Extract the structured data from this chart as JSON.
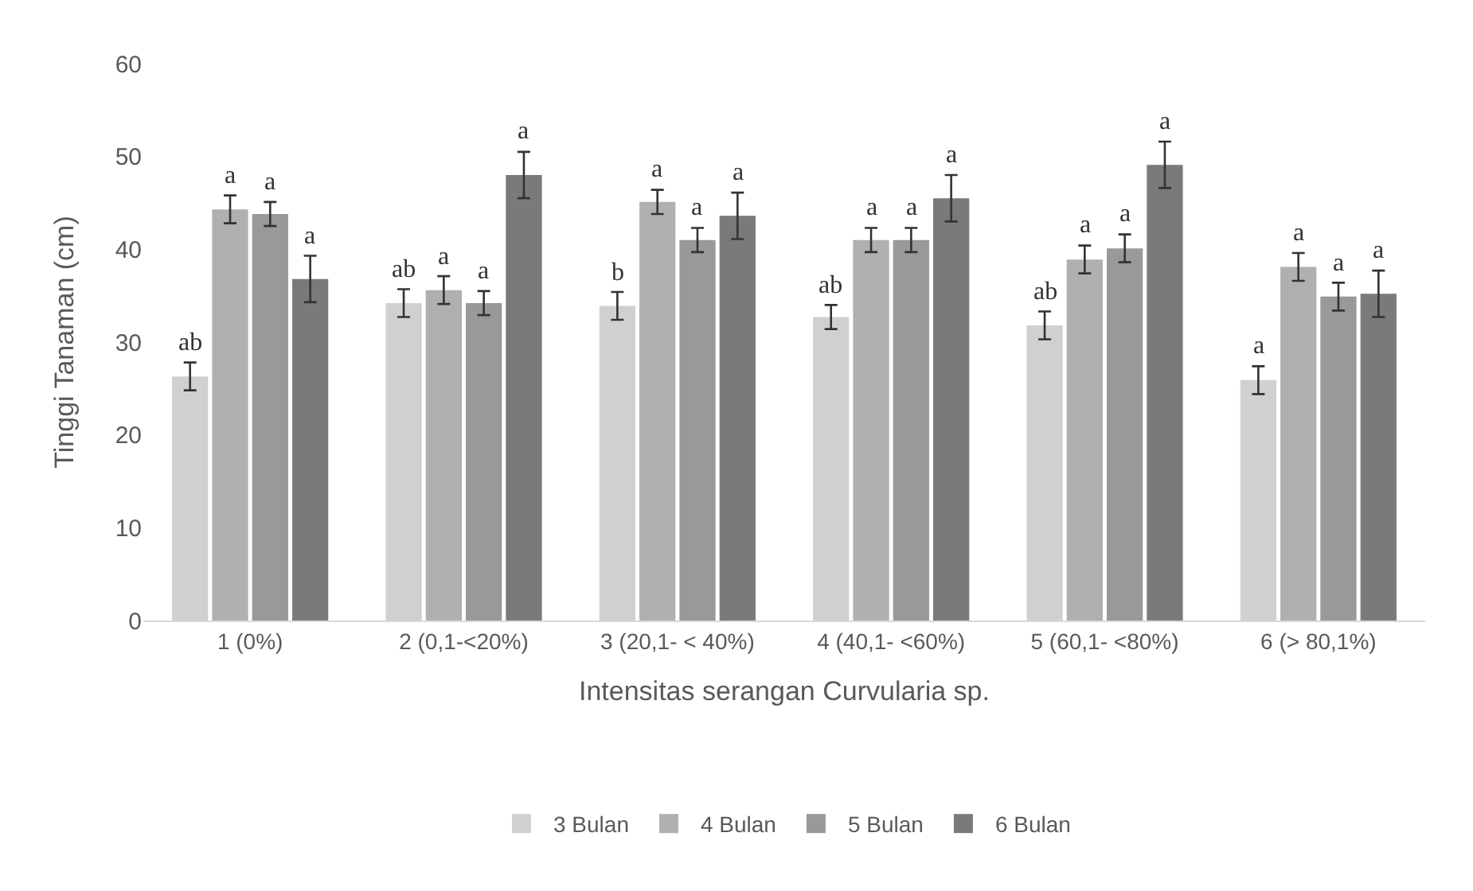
{
  "chart_data": {
    "type": "bar",
    "ylabel": "Tinggi Tanaman (cm)",
    "xlabel": "Intensitas serangan Curvularia sp.",
    "categories": [
      "1 (0%)",
      "2 (0,1-<20%)",
      "3 (20,1- < 40%)",
      "4 (40,1- <60%)",
      "5 (60,1- <80%)",
      "6 (> 80,1%)"
    ],
    "series": [
      {
        "name": "3 Bulan",
        "color": "#d0d0d0",
        "values": [
          26.3,
          34.2,
          33.9,
          32.7,
          31.8,
          25.9
        ],
        "errors": [
          1.5,
          1.5,
          1.5,
          1.3,
          1.5,
          1.5
        ],
        "value_labels": [
          "ab",
          "ab",
          "b",
          "ab",
          "ab",
          "a"
        ]
      },
      {
        "name": "4 Bulan",
        "color": "#b0b0b0",
        "values": [
          44.3,
          35.6,
          45.1,
          41,
          38.9,
          38.1
        ],
        "errors": [
          1.5,
          1.5,
          1.3,
          1.3,
          1.5,
          1.5
        ],
        "value_labels": [
          "a",
          "a",
          "a",
          "a",
          "a",
          "a"
        ]
      },
      {
        "name": "5 Bulan",
        "color": "#999999",
        "values": [
          43.8,
          34.2,
          41,
          41,
          40.1,
          34.9
        ],
        "errors": [
          1.3,
          1.3,
          1.3,
          1.3,
          1.5,
          1.5
        ],
        "value_labels": [
          "a",
          "a",
          "a",
          "a",
          "a",
          "a"
        ]
      },
      {
        "name": "6 Bulan",
        "color": "#7a7a7a",
        "values": [
          36.8,
          48,
          43.6,
          45.5,
          49.1,
          35.2
        ],
        "errors": [
          2.5,
          2.5,
          2.5,
          2.5,
          2.5,
          2.5
        ],
        "value_labels": [
          "a",
          "a",
          "a",
          "a",
          "a",
          "a"
        ]
      }
    ],
    "ylim": [
      0,
      60
    ],
    "yticks": [
      0,
      10,
      20,
      30,
      40,
      50,
      60
    ],
    "grid": false,
    "legend": "bottom"
  }
}
